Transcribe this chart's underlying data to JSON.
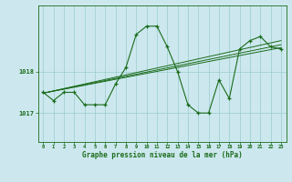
{
  "title": "Graphe pression niveau de la mer (hPa)",
  "bg_color": "#cce8ee",
  "grid_color": "#99cccc",
  "line_color": "#1a6b1a",
  "marker_color": "#1a6b1a",
  "xlim": [
    -0.5,
    23.5
  ],
  "ylim": [
    1016.3,
    1019.6
  ],
  "yticks": [
    1017,
    1018
  ],
  "xticks": [
    0,
    1,
    2,
    3,
    4,
    5,
    6,
    7,
    8,
    9,
    10,
    11,
    12,
    13,
    14,
    15,
    16,
    17,
    18,
    19,
    20,
    21,
    22,
    23
  ],
  "series1": {
    "x": [
      0,
      1,
      2,
      3,
      4,
      5,
      6,
      7,
      8,
      9,
      10,
      11,
      12,
      13,
      14,
      15,
      16,
      17,
      18,
      19,
      20,
      21,
      22,
      23
    ],
    "y": [
      1017.5,
      1017.3,
      1017.5,
      1017.5,
      1017.2,
      1017.2,
      1017.2,
      1017.7,
      1018.1,
      1018.9,
      1019.1,
      1019.1,
      1018.6,
      1018.0,
      1017.2,
      1017.0,
      1017.0,
      1017.8,
      1017.35,
      1018.55,
      1018.75,
      1018.85,
      1018.6,
      1018.55
    ]
  },
  "series2": {
    "x": [
      0,
      23
    ],
    "y": [
      1017.48,
      1018.75
    ]
  },
  "series3": {
    "x": [
      0,
      23
    ],
    "y": [
      1017.48,
      1018.65
    ]
  },
  "series4": {
    "x": [
      0,
      23
    ],
    "y": [
      1017.48,
      1018.58
    ]
  }
}
